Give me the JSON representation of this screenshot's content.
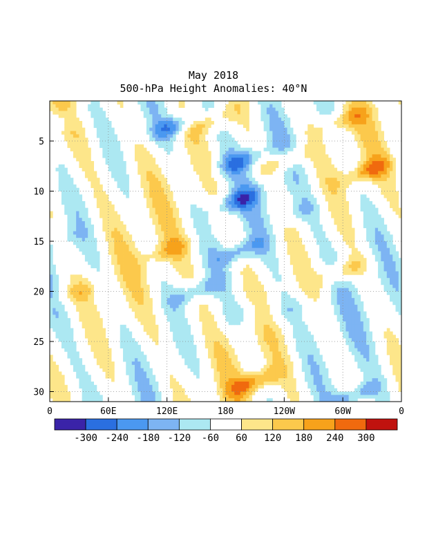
{
  "chart_data": {
    "type": "heatmap",
    "title": "May 2018",
    "subtitle": "500-hPa Height Anomalies: 40°N",
    "x_axis": {
      "ticks": [
        "0",
        "60E",
        "120E",
        "180",
        "120W",
        "60W",
        "0"
      ],
      "tick_longitudes": [
        0,
        60,
        120,
        180,
        240,
        300,
        360
      ],
      "range": [
        0,
        360
      ]
    },
    "y_axis": {
      "ticks": [
        "5",
        "10",
        "15",
        "20",
        "25",
        "30"
      ],
      "tick_values": [
        5,
        10,
        15,
        20,
        25,
        30
      ],
      "range": [
        1,
        31
      ],
      "direction": "increasing downward"
    },
    "grid": "dotted",
    "colorbar": {
      "orientation": "horizontal",
      "placement": "bottom",
      "labels": [
        "-300",
        "-240",
        "-180",
        "-120",
        "-60",
        "60",
        "120",
        "180",
        "240",
        "300"
      ],
      "colors": [
        "#3a23a8",
        "#2a6fe0",
        "#4b98f0",
        "#7db4f3",
        "#ace8f2",
        "#ffffff",
        "#fde68a",
        "#fcc94c",
        "#f7a21b",
        "#f06a0e",
        "#c0120e"
      ]
    },
    "anomaly_features": [
      {
        "sign": "negative",
        "lon": 128,
        "day": 3.5,
        "value": -200
      },
      {
        "sign": "negative",
        "lon": 195,
        "day": 7,
        "value": -180
      },
      {
        "sign": "negative",
        "lon": 192,
        "day": 11,
        "value": -200
      },
      {
        "sign": "negative",
        "lon": 195,
        "day": 16,
        "value": -180
      },
      {
        "sign": "negative",
        "lon": 150,
        "day": 20,
        "value": -160
      },
      {
        "sign": "negative",
        "lon": 310,
        "day": 30.5,
        "value": -200
      },
      {
        "sign": "negative",
        "lon": 12,
        "day": 3,
        "value": -80
      },
      {
        "sign": "negative",
        "lon": 10,
        "day": 15,
        "value": -70
      },
      {
        "sign": "negative",
        "lon": 255,
        "day": 12,
        "value": -70
      },
      {
        "sign": "negative",
        "lon": 200,
        "day": 22,
        "value": -70
      },
      {
        "sign": "negative",
        "lon": 240,
        "day": 22,
        "value": -65
      },
      {
        "sign": "positive",
        "lon": 165,
        "day": 3,
        "value": 140
      },
      {
        "sign": "positive",
        "lon": 240,
        "day": 7,
        "value": 160
      },
      {
        "sign": "positive",
        "lon": 325,
        "day": 8,
        "value": 200
      },
      {
        "sign": "positive",
        "lon": 300,
        "day": 3,
        "value": 150
      },
      {
        "sign": "positive",
        "lon": 210,
        "day": 29,
        "value": 210
      },
      {
        "sign": "positive",
        "lon": 300,
        "day": 18,
        "value": 160
      },
      {
        "sign": "positive",
        "lon": 120,
        "day": 16,
        "value": 130
      },
      {
        "sign": "positive",
        "lon": 30,
        "day": 20,
        "value": 100
      }
    ]
  }
}
